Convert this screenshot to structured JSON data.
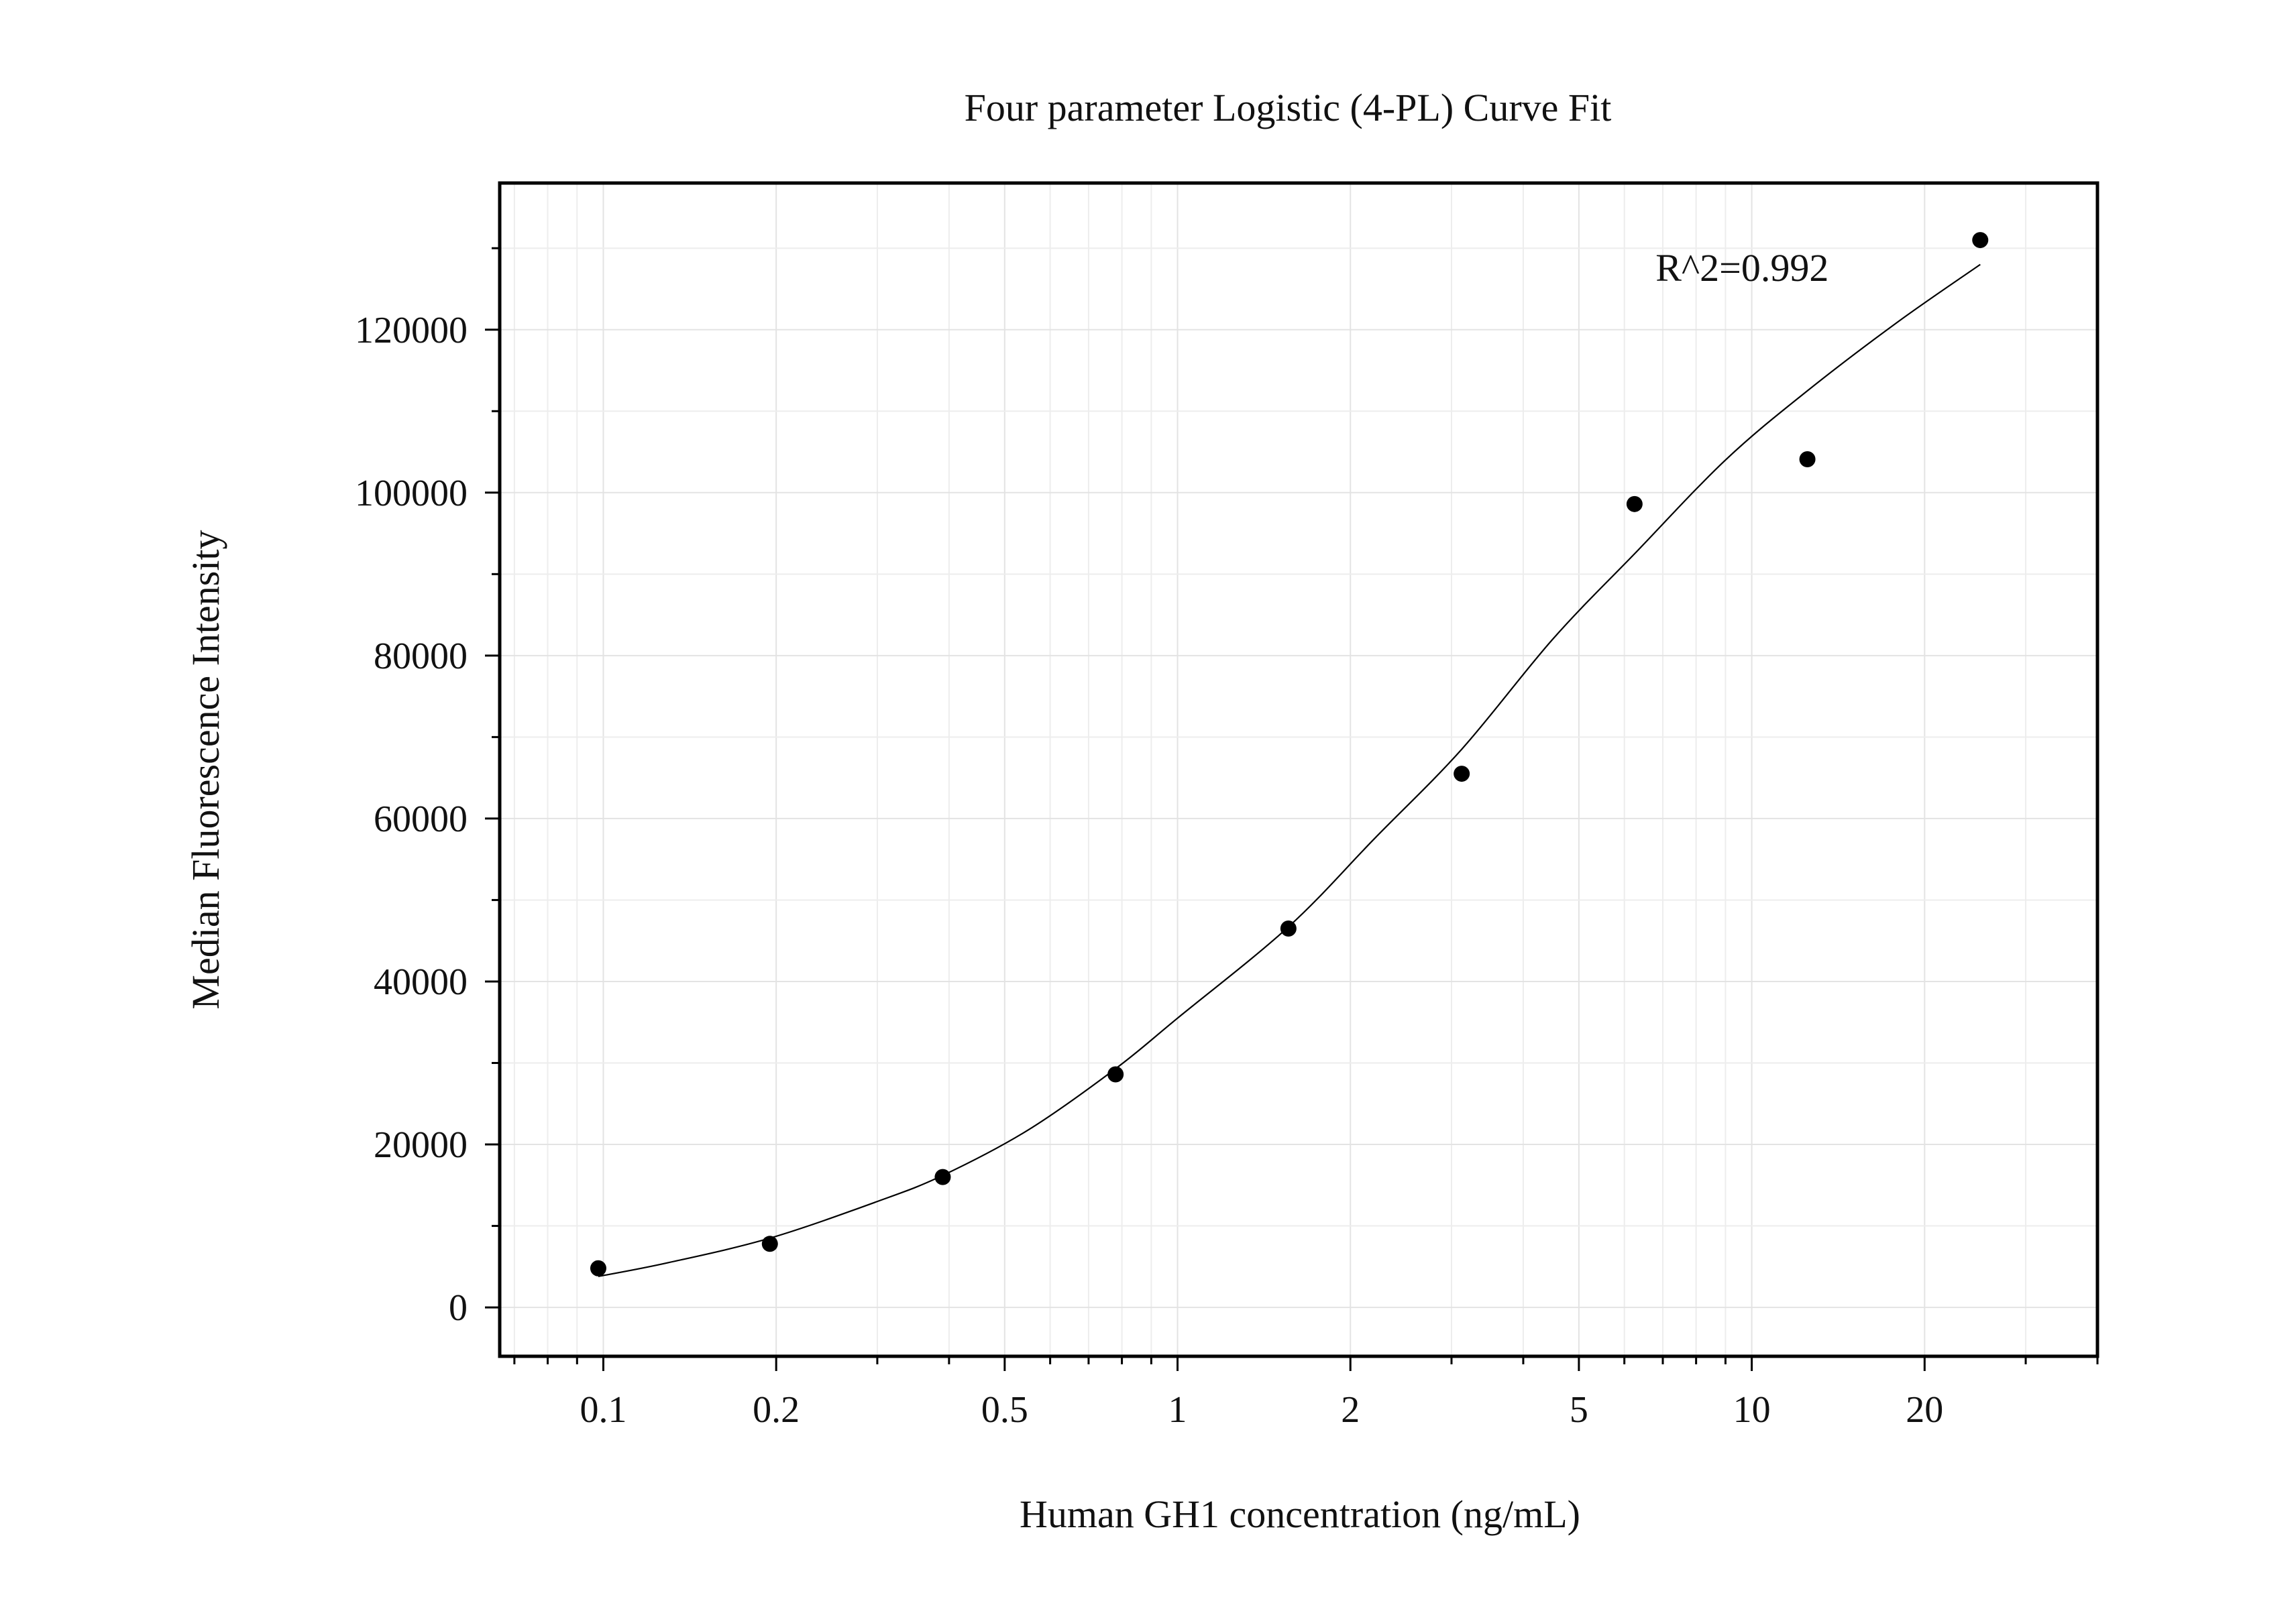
{
  "chart_data": {
    "type": "scatter",
    "title": "Four parameter Logistic (4-PL) Curve Fit",
    "xlabel": "Human GH1 concentration (ng/mL)",
    "ylabel": "Median Fluorescence Intensity",
    "xscale": "log",
    "xlim": [
      0.066,
      40
    ],
    "ylim": [
      -6000,
      138000
    ],
    "x_ticks": [
      {
        "value": 0.1,
        "label": "0.1"
      },
      {
        "value": 0.2,
        "label": "0.2"
      },
      {
        "value": 0.5,
        "label": "0.5"
      },
      {
        "value": 1,
        "label": "1"
      },
      {
        "value": 2,
        "label": "2"
      },
      {
        "value": 5,
        "label": "5"
      },
      {
        "value": 10,
        "label": "10"
      },
      {
        "value": 20,
        "label": "20"
      }
    ],
    "y_ticks": [
      {
        "value": 0,
        "label": "0"
      },
      {
        "value": 20000,
        "label": "20000"
      },
      {
        "value": 40000,
        "label": "40000"
      },
      {
        "value": 60000,
        "label": "60000"
      },
      {
        "value": 80000,
        "label": "80000"
      },
      {
        "value": 100000,
        "label": "100000"
      },
      {
        "value": 120000,
        "label": "120000"
      }
    ],
    "grid": true,
    "points": {
      "x": [
        0.098,
        0.195,
        0.39,
        0.78,
        1.56,
        3.125,
        6.25,
        12.5,
        25
      ],
      "y": [
        4800,
        7800,
        16000,
        28600,
        46500,
        65500,
        98600,
        104100,
        131000
      ]
    },
    "fit_curve": {
      "model": "4-PL",
      "x": [
        0.098,
        0.13,
        0.195,
        0.3,
        0.39,
        0.55,
        0.78,
        1.0,
        1.56,
        2.2,
        3.125,
        4.5,
        6.25,
        9.0,
        12.5,
        18.0,
        25
      ],
      "y": [
        3800,
        5500,
        8500,
        13000,
        16200,
        21800,
        29300,
        35500,
        46700,
        57500,
        68500,
        82000,
        92500,
        104000,
        112500,
        121000,
        128000
      ]
    },
    "annotations": [
      {
        "text": "R^2=0.992",
        "x": 6.8,
        "y": 126000
      }
    ]
  }
}
